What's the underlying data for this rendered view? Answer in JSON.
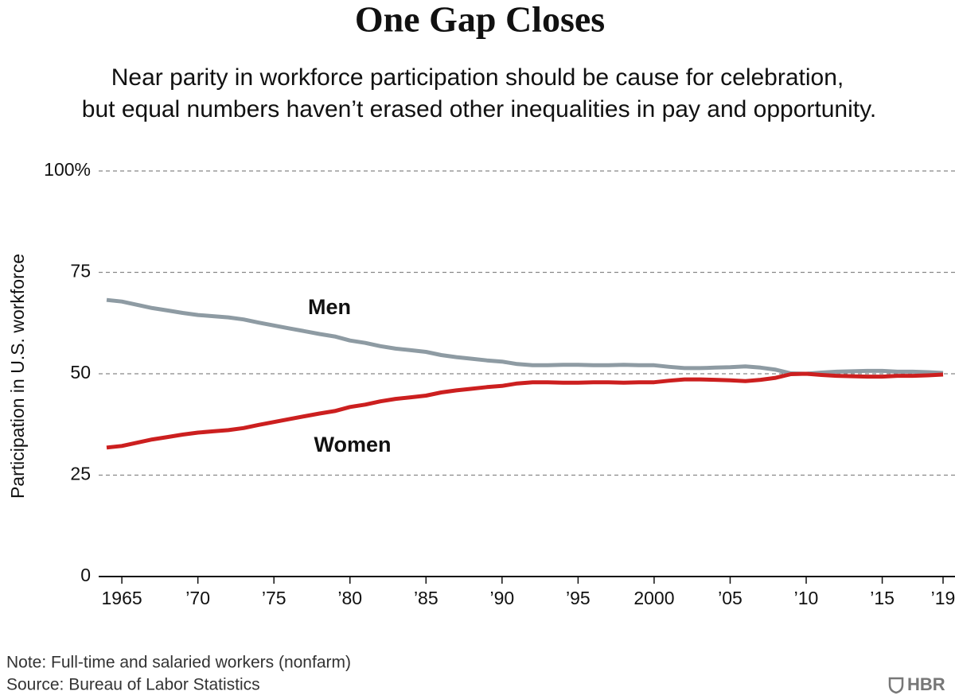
{
  "chart_data": {
    "type": "line",
    "title": "One Gap Closes",
    "subtitle": [
      "Near parity in workforce participation should be cause for celebration,",
      "but equal numbers haven’t erased other inequalities in pay and opportunity."
    ],
    "y_label": "Participation in U.S. workforce",
    "x": [
      1964,
      1965,
      1966,
      1967,
      1968,
      1969,
      1970,
      1971,
      1972,
      1973,
      1974,
      1975,
      1976,
      1977,
      1978,
      1979,
      1980,
      1981,
      1982,
      1983,
      1984,
      1985,
      1986,
      1987,
      1988,
      1989,
      1990,
      1991,
      1992,
      1993,
      1994,
      1995,
      1996,
      1997,
      1998,
      1999,
      2000,
      2001,
      2002,
      2003,
      2004,
      2005,
      2006,
      2007,
      2008,
      2009,
      2010,
      2011,
      2012,
      2013,
      2014,
      2015,
      2016,
      2017,
      2018,
      2019
    ],
    "series": [
      {
        "name": "Men",
        "color": "#8e9ba3",
        "values": [
          68.2,
          67.8,
          67,
          66.2,
          65.6,
          65,
          64.5,
          64.2,
          63.9,
          63.4,
          62.6,
          61.9,
          61.2,
          60.5,
          59.8,
          59.2,
          58.2,
          57.6,
          56.8,
          56.2,
          55.8,
          55.4,
          54.6,
          54.1,
          53.7,
          53.3,
          53,
          52.4,
          52.1,
          52.1,
          52.2,
          52.2,
          52.1,
          52.1,
          52.2,
          52.1,
          52.1,
          51.7,
          51.4,
          51.4,
          51.5,
          51.6,
          51.8,
          51.5,
          51,
          50.1,
          50,
          50.3,
          50.5,
          50.6,
          50.7,
          50.7,
          50.5,
          50.5,
          50.4,
          50.2
        ]
      },
      {
        "name": "Women",
        "color": "#cc1f1f",
        "values": [
          31.8,
          32.2,
          33,
          33.8,
          34.4,
          35,
          35.5,
          35.8,
          36.1,
          36.6,
          37.4,
          38.1,
          38.8,
          39.5,
          40.2,
          40.8,
          41.8,
          42.4,
          43.2,
          43.8,
          44.2,
          44.6,
          45.4,
          45.9,
          46.3,
          46.7,
          47,
          47.6,
          47.9,
          47.9,
          47.8,
          47.8,
          47.9,
          47.9,
          47.8,
          47.9,
          47.9,
          48.3,
          48.6,
          48.6,
          48.5,
          48.4,
          48.2,
          48.5,
          49,
          49.9,
          50,
          49.7,
          49.5,
          49.4,
          49.3,
          49.3,
          49.5,
          49.5,
          49.6,
          49.8
        ]
      }
    ],
    "xlim": [
      1964,
      2019
    ],
    "xticks": [
      1965,
      {
        "value": 1970,
        "label": "’70"
      },
      {
        "value": 1975,
        "label": "’75"
      },
      {
        "value": 1980,
        "label": "’80"
      },
      {
        "value": 1985,
        "label": "’85"
      },
      {
        "value": 1990,
        "label": "’90"
      },
      {
        "value": 1995,
        "label": "’95"
      },
      2000,
      {
        "value": 2005,
        "label": "’05"
      },
      {
        "value": 2010,
        "label": "’10"
      },
      {
        "value": 2015,
        "label": "’15"
      },
      {
        "value": 2019,
        "label": "’19"
      }
    ],
    "ylim": [
      0,
      100
    ],
    "yticks": [
      0,
      25,
      50,
      75,
      {
        "value": 100,
        "label": "100%"
      }
    ],
    "grid": true,
    "notes": [
      "Note: Full-time and salaried workers (nonfarm)",
      "Source: Bureau of Labor Statistics"
    ],
    "logo": "HBR"
  }
}
